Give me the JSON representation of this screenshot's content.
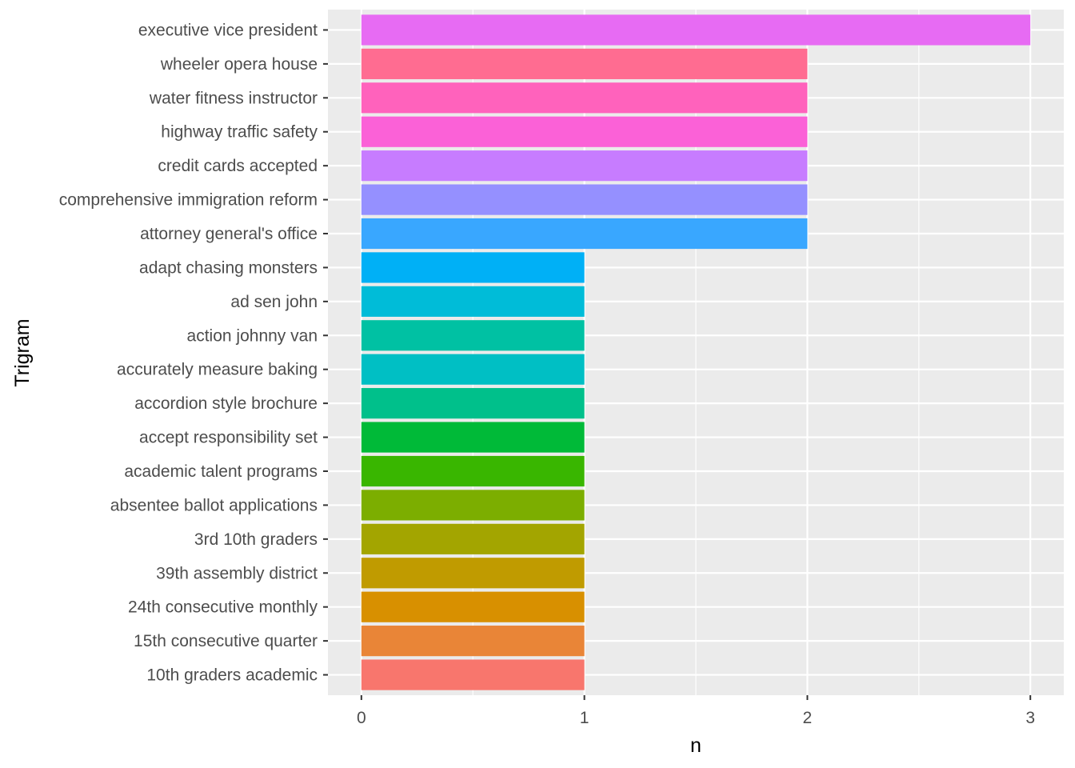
{
  "chart_data": {
    "type": "bar",
    "orientation": "horizontal",
    "xlabel": "n",
    "ylabel": "Trigram",
    "xlim": [
      -0.15,
      3.15
    ],
    "x_ticks": [
      0,
      1,
      2,
      3
    ],
    "grid": true,
    "legend": "none",
    "panel_background": "#ebebeb",
    "categories": [
      "executive vice president",
      "wheeler opera house",
      "water fitness instructor",
      "highway traffic safety",
      "credit cards accepted",
      "comprehensive immigration reform",
      "attorney general's office",
      "adapt chasing monsters",
      "ad sen john",
      "action johnny van",
      "accurately measure baking",
      "accordion style brochure",
      "accept responsibility set",
      "academic talent programs",
      "absentee ballot applications",
      "3rd 10th graders",
      "39th assembly district",
      "24th consecutive monthly",
      "15th consecutive quarter",
      "10th graders academic"
    ],
    "values": [
      3,
      2,
      2,
      2,
      2,
      2,
      2,
      1,
      1,
      1,
      1,
      1,
      1,
      1,
      1,
      1,
      1,
      1,
      1,
      1
    ],
    "colors": [
      "#E76BF3",
      "#FF6C91",
      "#FF62BC",
      "#FB61D7",
      "#C77CFF",
      "#9590FF",
      "#39A7FF",
      "#00B0F6",
      "#00BCD8",
      "#00C1A3",
      "#00BFC4",
      "#00C08B",
      "#00BA38",
      "#39B600",
      "#7CAE00",
      "#A3A500",
      "#C09B00",
      "#D89000",
      "#E98537",
      "#F8766D"
    ]
  }
}
